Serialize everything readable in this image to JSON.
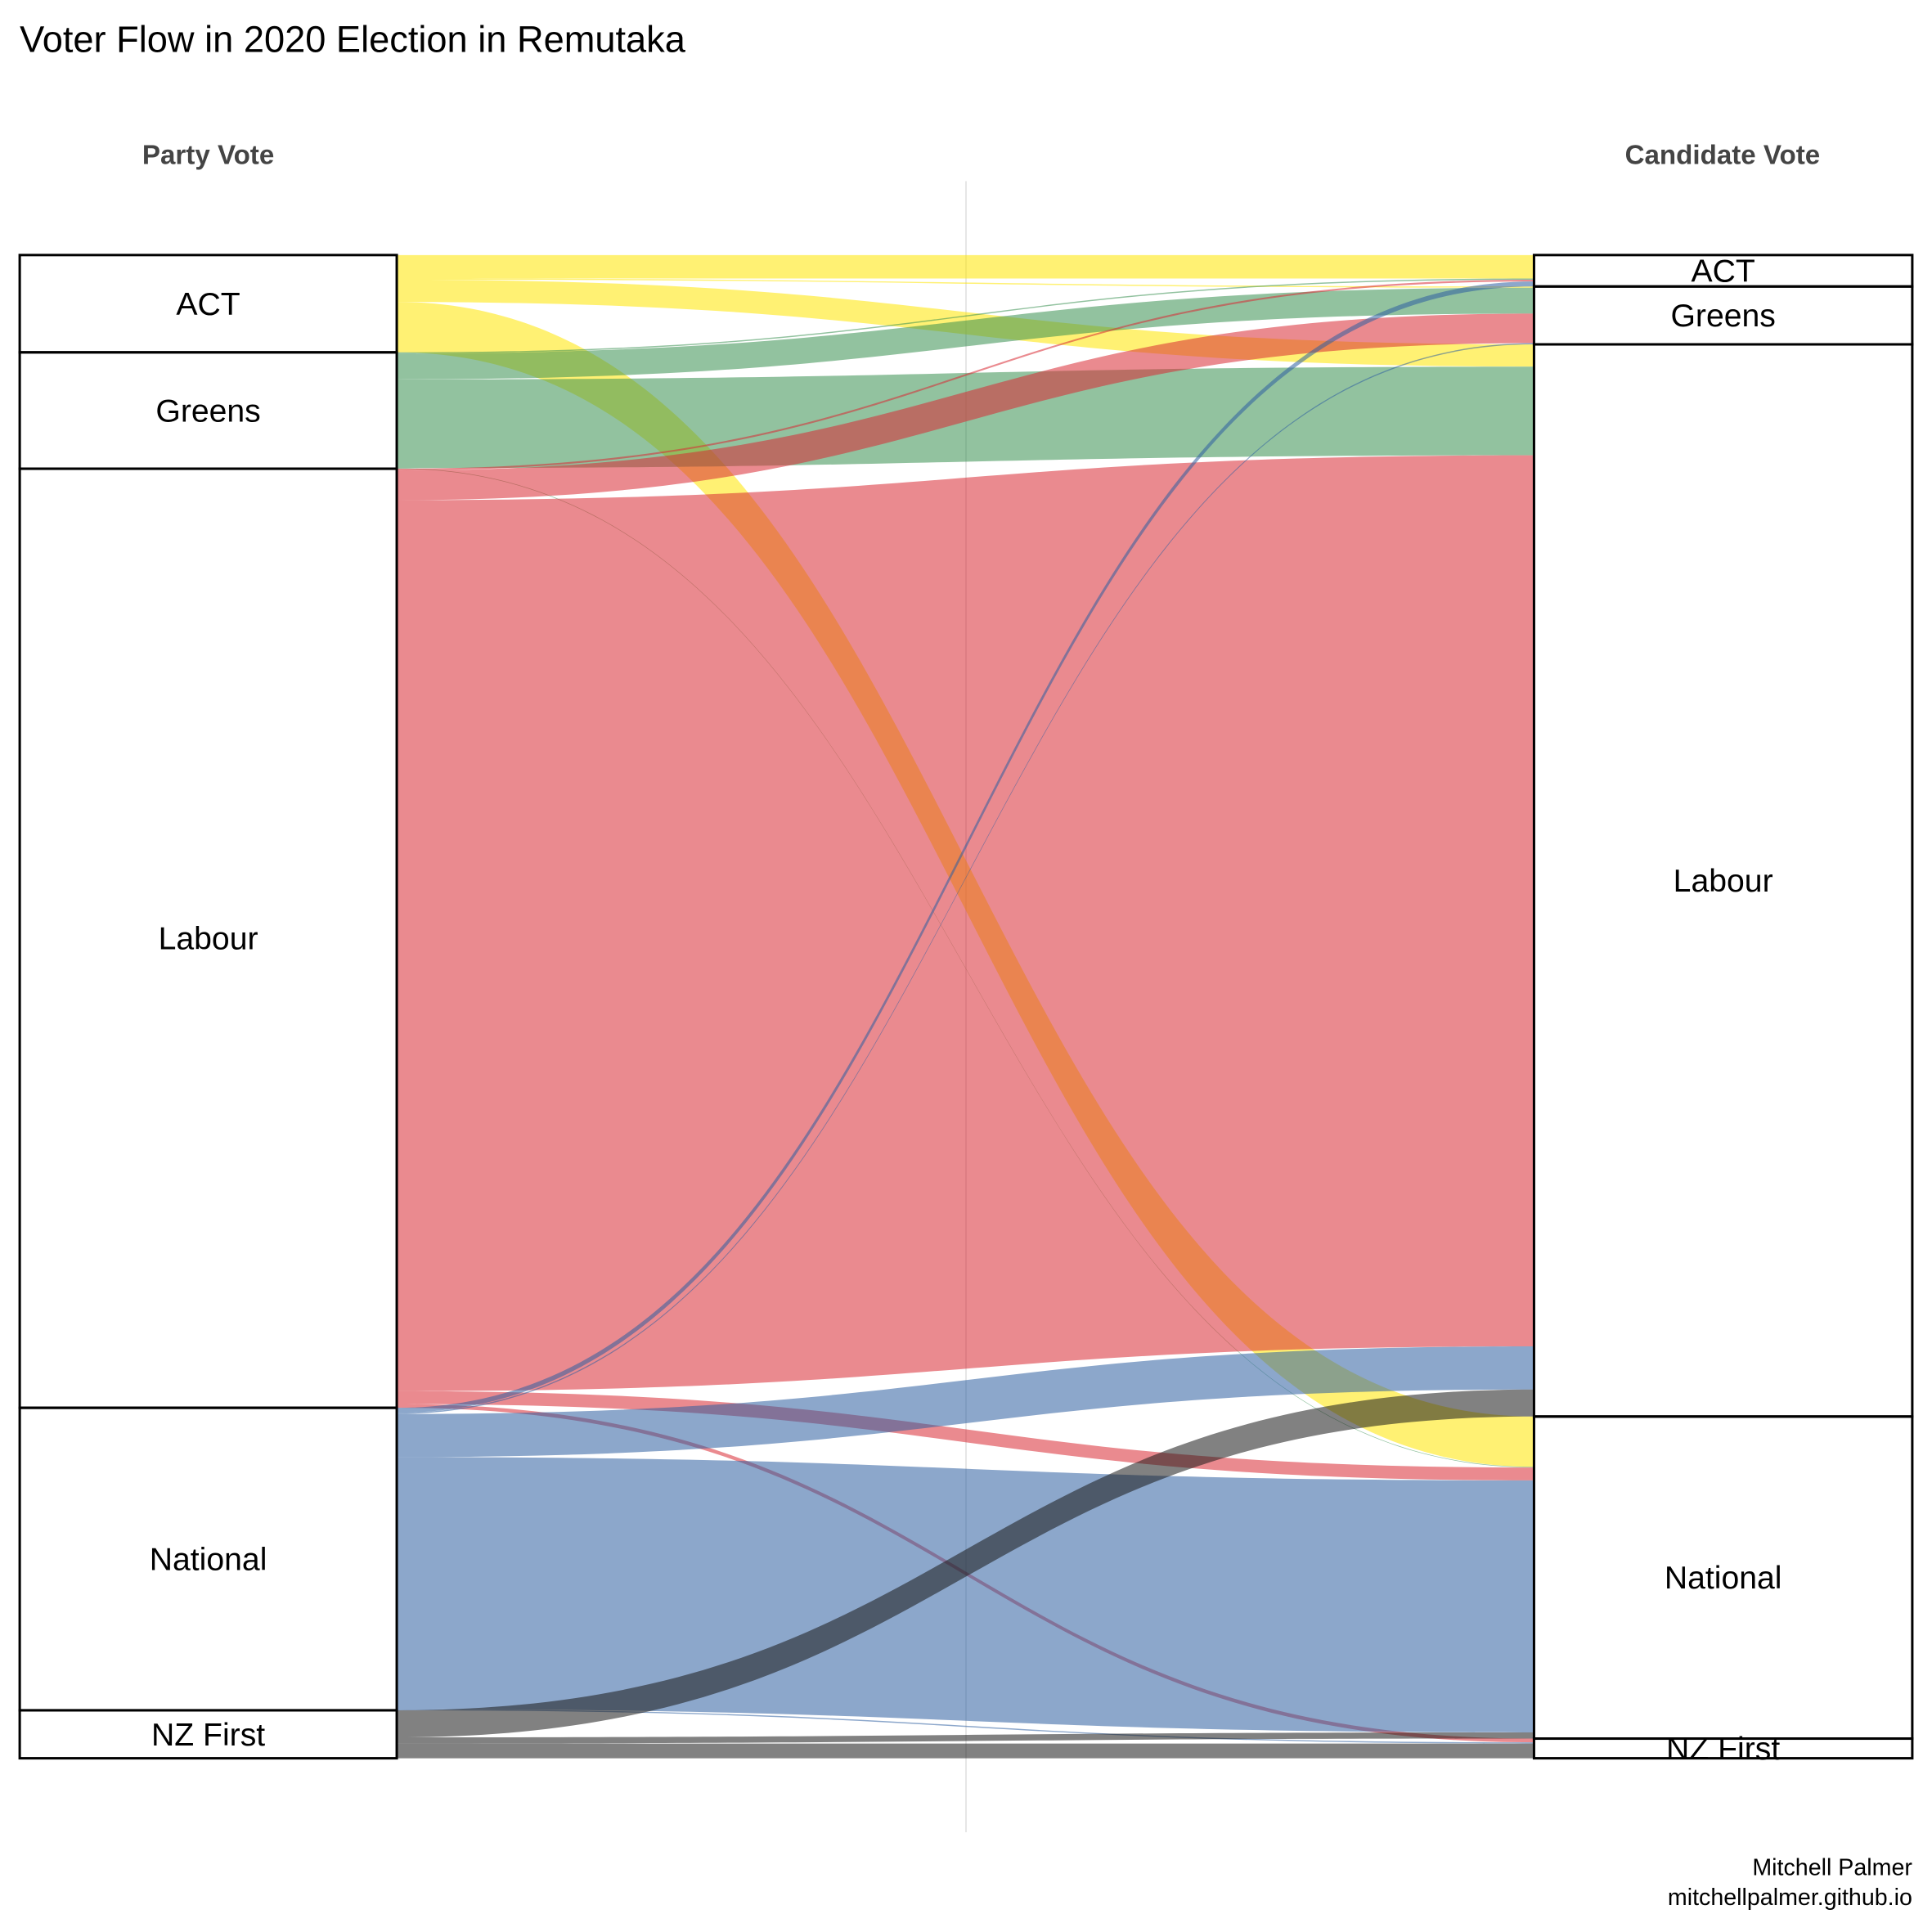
{
  "chart_data": {
    "type": "sankey",
    "title": "Voter Flow in 2020 Election in Remutaka",
    "left_axis_label": "Party Vote",
    "right_axis_label": "Candidate Vote",
    "credit_line1": "Mitchell Palmer",
    "credit_line2": "mitchellpalmer.github.io",
    "parties": [
      "ACT",
      "Greens",
      "Labour",
      "National",
      "NZ First"
    ],
    "colors": {
      "ACT": "#FFE600",
      "Greens": "#389050",
      "Labour": "#D82A33",
      "National": "#2E5FA0",
      "NZ First": "#1a1a1a"
    },
    "unit": "approximate share of votes (per mille of total)",
    "flows": [
      {
        "from": "ACT",
        "to": "ACT",
        "value": 15.6
      },
      {
        "from": "ACT",
        "to": "Greens",
        "value": 0.8
      },
      {
        "from": "ACT",
        "to": "Labour",
        "value": 14.8
      },
      {
        "from": "ACT",
        "to": "National",
        "value": 33.5
      },
      {
        "from": "Greens",
        "to": "ACT",
        "value": 0.8
      },
      {
        "from": "Greens",
        "to": "Greens",
        "value": 17.2
      },
      {
        "from": "Greens",
        "to": "Labour",
        "value": 59
      },
      {
        "from": "Greens",
        "to": "National",
        "value": 0.4
      },
      {
        "from": "Labour",
        "to": "ACT",
        "value": 1.2
      },
      {
        "from": "Labour",
        "to": "Greens",
        "value": 19.7
      },
      {
        "from": "Labour",
        "to": "Labour",
        "value": 592.6
      },
      {
        "from": "Labour",
        "to": "National",
        "value": 8.6
      },
      {
        "from": "Labour",
        "to": "NZ First",
        "value": 2.5
      },
      {
        "from": "National",
        "to": "ACT",
        "value": 3.3
      },
      {
        "from": "National",
        "to": "Greens",
        "value": 0.8
      },
      {
        "from": "National",
        "to": "Labour",
        "value": 28.7
      },
      {
        "from": "National",
        "to": "National",
        "value": 167.6
      },
      {
        "from": "National",
        "to": "NZ First",
        "value": 0.8
      },
      {
        "from": "NZ First",
        "to": "Labour",
        "value": 18
      },
      {
        "from": "NZ First",
        "to": "National",
        "value": 4.1
      },
      {
        "from": "NZ First",
        "to": "NZ First",
        "value": 9.8
      }
    ]
  }
}
